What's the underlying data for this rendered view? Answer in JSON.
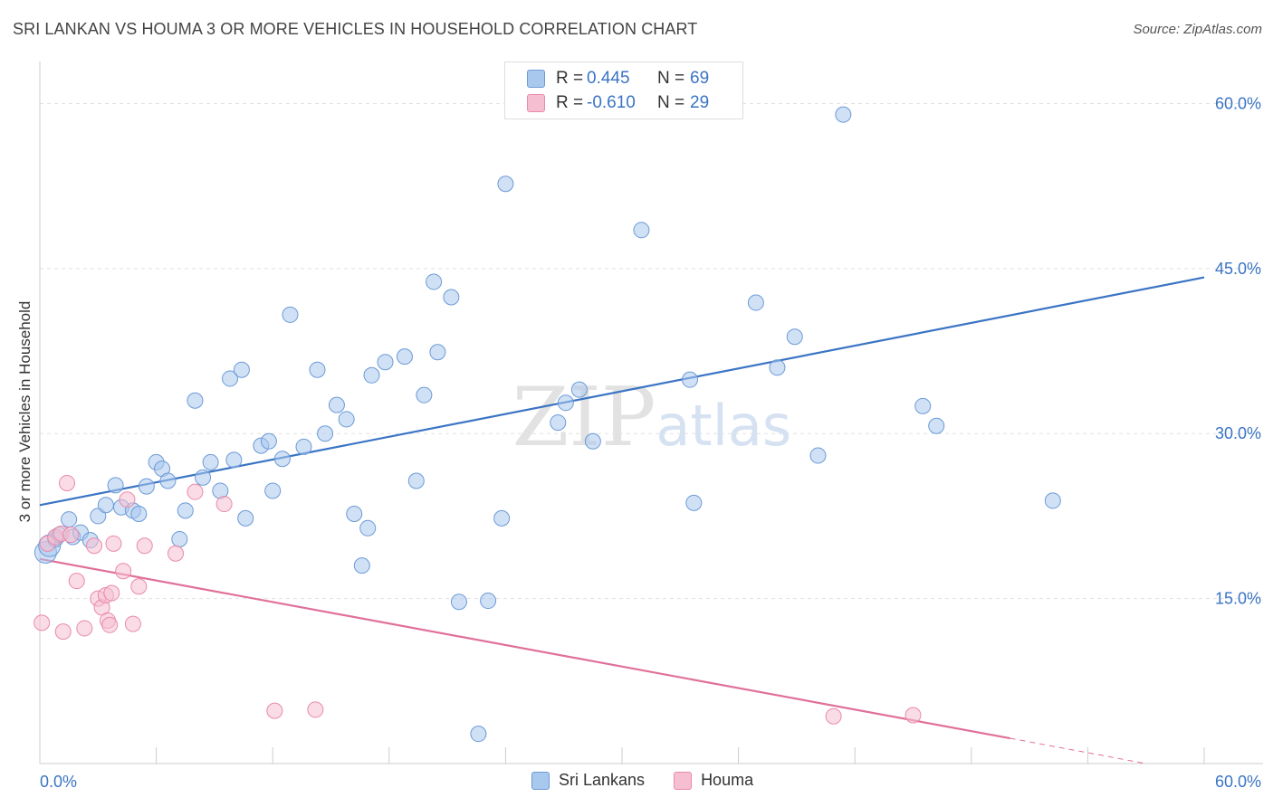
{
  "title": "SRI LANKAN VS HOUMA 3 OR MORE VEHICLES IN HOUSEHOLD CORRELATION CHART",
  "source": "Source: ZipAtlas.com",
  "legend": {
    "rows": [
      {
        "r_label": "R =",
        "r_value": "0.445",
        "n_label": "N =",
        "n_value": "69"
      },
      {
        "r_label": "R =",
        "r_value": "-0.610",
        "n_label": "N =",
        "n_value": "29"
      }
    ]
  },
  "bottom_legend": [
    "Sri Lankans",
    "Houma"
  ],
  "colors": {
    "blue_fill": "#a9c8ee",
    "blue_stroke": "#6c9ad6",
    "blue_line": "#3a74c4",
    "pink_fill": "#f6bfd1",
    "pink_stroke": "#e98aa9",
    "pink_line": "#e0709a",
    "tick_label": "#3a74c4",
    "grid": "#e0e0e0"
  },
  "chart_data": {
    "type": "scatter",
    "title": "SRI LANKAN VS HOUMA 3 OR MORE VEHICLES IN HOUSEHOLD CORRELATION CHART",
    "xlabel": "",
    "ylabel": "3 or more Vehicles in Household",
    "xlim": [
      0,
      60
    ],
    "ylim": [
      0,
      63
    ],
    "x_tick_labels": [
      "0.0%",
      "60.0%"
    ],
    "y_ticks": [
      15,
      30,
      45,
      60
    ],
    "y_tick_labels": [
      "15.0%",
      "30.0%",
      "45.0%",
      "60.0%"
    ],
    "watermark": "ZIPatlas",
    "series": [
      {
        "name": "Sri Lankans",
        "color": "#a9c8ee",
        "points": [
          [
            0.3,
            19.2
          ],
          [
            0.5,
            19.8
          ],
          [
            0.8,
            20.4
          ],
          [
            1.0,
            20.8
          ],
          [
            1.5,
            22.2
          ],
          [
            1.7,
            20.6
          ],
          [
            2.1,
            21.0
          ],
          [
            2.6,
            20.3
          ],
          [
            3.0,
            22.5
          ],
          [
            3.4,
            23.5
          ],
          [
            3.9,
            25.3
          ],
          [
            4.2,
            23.3
          ],
          [
            4.8,
            23.0
          ],
          [
            5.1,
            22.7
          ],
          [
            5.5,
            25.2
          ],
          [
            6.0,
            27.4
          ],
          [
            6.3,
            26.8
          ],
          [
            6.6,
            25.7
          ],
          [
            7.2,
            20.4
          ],
          [
            7.5,
            23.0
          ],
          [
            8.0,
            33.0
          ],
          [
            8.4,
            26.0
          ],
          [
            8.8,
            27.4
          ],
          [
            9.3,
            24.8
          ],
          [
            9.8,
            35.0
          ],
          [
            10.0,
            27.6
          ],
          [
            10.4,
            35.8
          ],
          [
            10.6,
            22.3
          ],
          [
            11.4,
            28.9
          ],
          [
            11.8,
            29.3
          ],
          [
            12.0,
            24.8
          ],
          [
            12.5,
            27.7
          ],
          [
            12.9,
            40.8
          ],
          [
            13.6,
            28.8
          ],
          [
            14.3,
            35.8
          ],
          [
            14.7,
            30.0
          ],
          [
            15.3,
            32.6
          ],
          [
            15.8,
            31.3
          ],
          [
            16.2,
            22.7
          ],
          [
            16.6,
            18.0
          ],
          [
            16.9,
            21.4
          ],
          [
            17.1,
            35.3
          ],
          [
            17.8,
            36.5
          ],
          [
            18.8,
            37.0
          ],
          [
            19.4,
            25.7
          ],
          [
            19.8,
            33.5
          ],
          [
            20.3,
            43.8
          ],
          [
            20.5,
            37.4
          ],
          [
            21.2,
            42.4
          ],
          [
            21.6,
            14.7
          ],
          [
            22.6,
            2.7
          ],
          [
            23.1,
            14.8
          ],
          [
            23.8,
            22.3
          ],
          [
            24.0,
            52.7
          ],
          [
            26.7,
            31.0
          ],
          [
            27.1,
            32.8
          ],
          [
            27.8,
            34.0
          ],
          [
            28.5,
            29.3
          ],
          [
            31.0,
            48.5
          ],
          [
            33.5,
            34.9
          ],
          [
            33.7,
            23.7
          ],
          [
            36.9,
            41.9
          ],
          [
            38.0,
            36.0
          ],
          [
            38.9,
            38.8
          ],
          [
            40.1,
            28.0
          ],
          [
            41.4,
            59.0
          ],
          [
            45.5,
            32.5
          ],
          [
            46.2,
            30.7
          ],
          [
            52.2,
            23.9
          ]
        ]
      },
      {
        "name": "Houma",
        "color": "#f6bfd1",
        "points": [
          [
            0.1,
            12.8
          ],
          [
            0.4,
            20.0
          ],
          [
            0.8,
            20.6
          ],
          [
            1.1,
            20.9
          ],
          [
            1.2,
            12.0
          ],
          [
            1.4,
            25.5
          ],
          [
            1.6,
            20.8
          ],
          [
            1.9,
            16.6
          ],
          [
            2.3,
            12.3
          ],
          [
            2.8,
            19.8
          ],
          [
            3.0,
            15.0
          ],
          [
            3.2,
            14.2
          ],
          [
            3.4,
            15.3
          ],
          [
            3.5,
            13.0
          ],
          [
            3.6,
            12.6
          ],
          [
            3.7,
            15.5
          ],
          [
            3.8,
            20.0
          ],
          [
            4.3,
            17.5
          ],
          [
            4.5,
            24.0
          ],
          [
            4.8,
            12.7
          ],
          [
            5.1,
            16.1
          ],
          [
            5.4,
            19.8
          ],
          [
            7.0,
            19.1
          ],
          [
            8.0,
            24.7
          ],
          [
            9.5,
            23.6
          ],
          [
            12.1,
            4.8
          ],
          [
            14.2,
            4.9
          ],
          [
            40.9,
            4.3
          ],
          [
            45.0,
            4.4
          ]
        ]
      }
    ],
    "trendlines": [
      {
        "series": "Sri Lankans",
        "x": [
          0,
          60
        ],
        "y": [
          23.5,
          44.2
        ],
        "style": "solid"
      },
      {
        "series": "Houma",
        "x": [
          0,
          50
        ],
        "y": [
          18.6,
          2.3
        ],
        "style": "solid"
      },
      {
        "series": "Houma",
        "x": [
          50,
          57
        ],
        "y": [
          2.3,
          0.0
        ],
        "style": "dashed"
      }
    ]
  }
}
